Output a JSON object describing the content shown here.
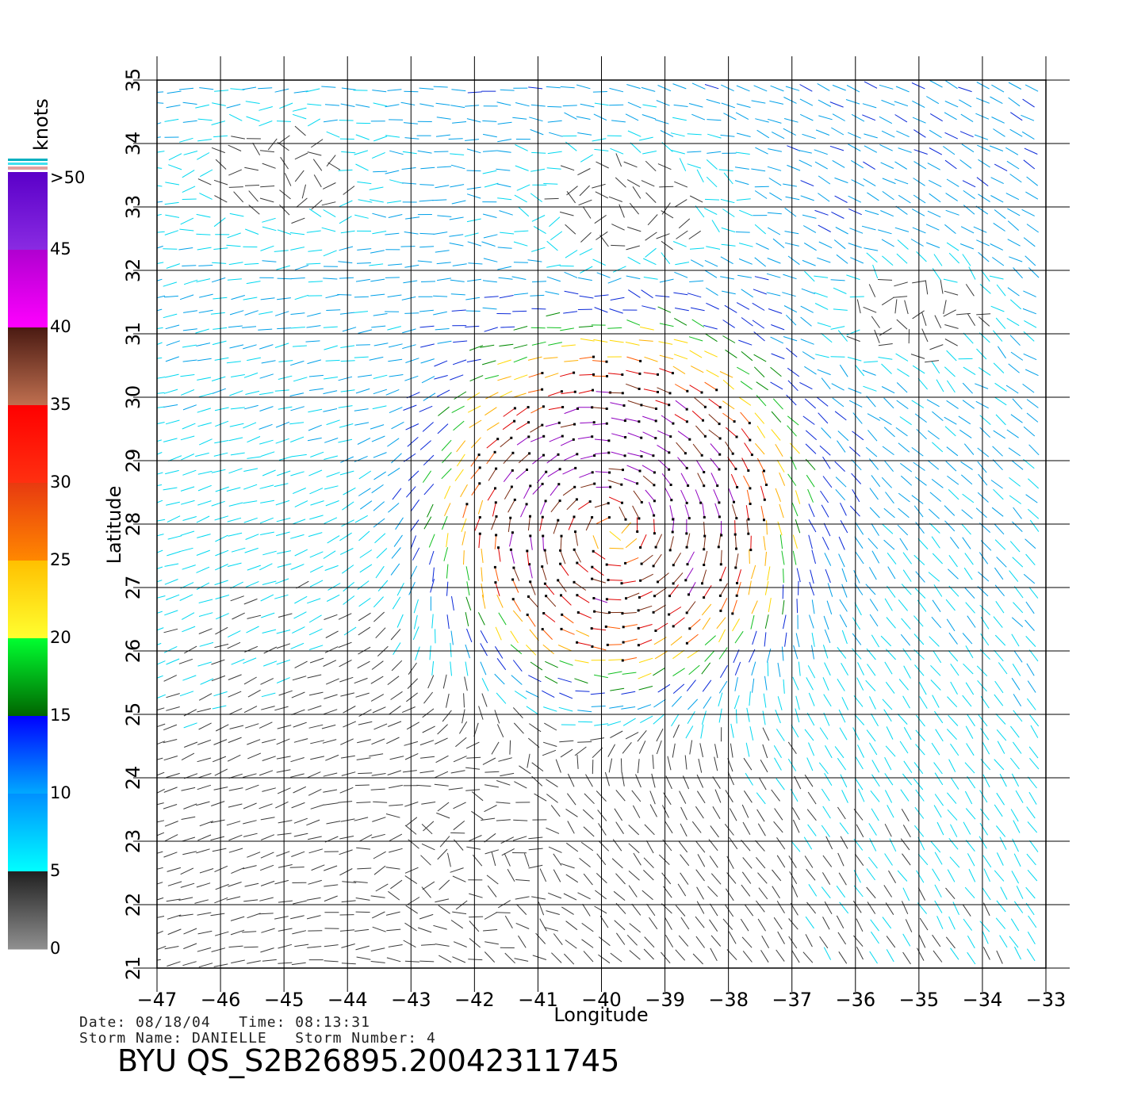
{
  "map": {
    "xlabel": "Longitude",
    "ylabel": "Latitude",
    "lon_ticks": [
      "-47",
      "-46",
      "-45",
      "-44",
      "-43",
      "-42",
      "-41",
      "-40",
      "-39",
      "-38",
      "-37",
      "-36",
      "-35",
      "-34",
      "-33"
    ],
    "lat_ticks": [
      "21",
      "22",
      "23",
      "24",
      "25",
      "26",
      "27",
      "28",
      "29",
      "30",
      "31",
      "32",
      "33",
      "34",
      "35"
    ],
    "lon_range": [
      -47,
      -33
    ],
    "lat_range": [
      21,
      35
    ],
    "grid": true,
    "storm_center": {
      "lon": -39.8,
      "lat": 28.0
    },
    "vector_field": "wind vectors colored by speed (knots)"
  },
  "colorbar": {
    "title": "knots",
    "labels": [
      ">50",
      "45",
      "40",
      "35",
      "30",
      "25",
      "20",
      "15",
      "10",
      "5",
      "0"
    ],
    "segments": [
      {
        "range": "45-50+",
        "from": "#8a2be2",
        "to": "#5a00c8"
      },
      {
        "range": "40-45",
        "from": "#ff00ff",
        "to": "#b000d0"
      },
      {
        "range": "35-40",
        "from": "#c07050",
        "to": "#4a1a12"
      },
      {
        "range": "30-35",
        "from": "#ff3010",
        "to": "#ff0000"
      },
      {
        "range": "25-30",
        "from": "#ff8800",
        "to": "#e83a10"
      },
      {
        "range": "20-25",
        "from": "#ffff30",
        "to": "#ffc000"
      },
      {
        "range": "15-20",
        "from": "#006400",
        "to": "#00ff30"
      },
      {
        "range": "10-15",
        "from": "#00aaff",
        "to": "#0000ff"
      },
      {
        "range": "5-10",
        "from": "#00ffff",
        "to": "#0090ff"
      },
      {
        "range": "0-5",
        "from": "#909090",
        "to": "#202020"
      }
    ],
    "stripe_colors": [
      "#00b0c0",
      "#40e0f0",
      "#e0a0a0"
    ]
  },
  "info": {
    "line1": "Date: 08/18/04   Time: 08:13:31",
    "line2": "Storm Name: DANIELLE   Storm Number: 4",
    "title": "BYU  QS_S2B26895.20042311745"
  }
}
